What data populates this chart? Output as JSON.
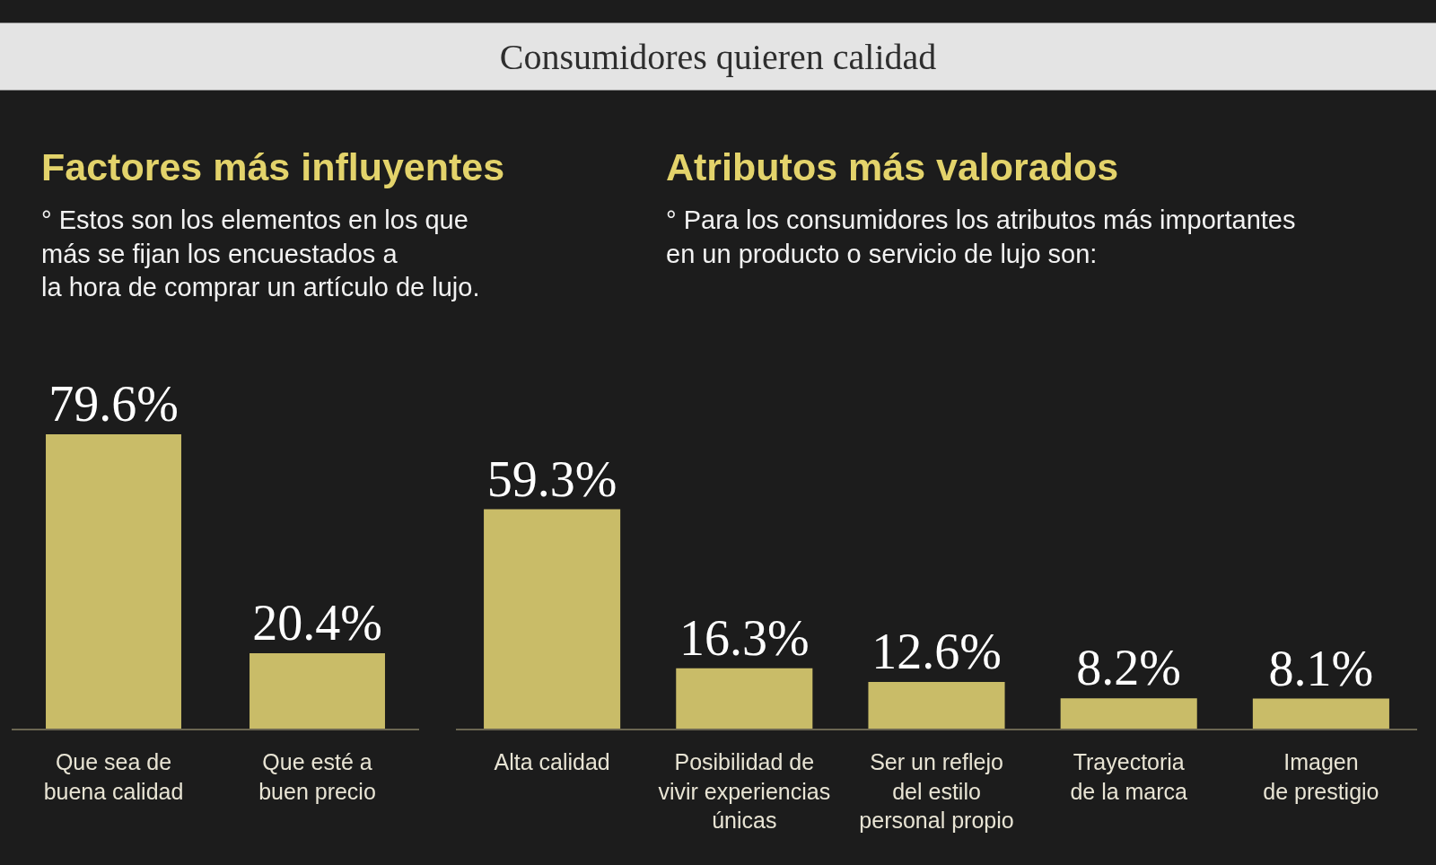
{
  "chart_data": [
    {
      "type": "other",
      "title": "Consumidores quieren calidad"
    },
    {
      "type": "bar",
      "title": "Factores más influyentes",
      "subtitle": "° Estos son los elementos en los que\nmás se fijan los encuestados a\nla hora de comprar un artículo de lujo.",
      "categories": [
        "Que sea de\nbuena calidad",
        "Que esté a\nbuen precio"
      ],
      "values": [
        79.6,
        20.4
      ],
      "value_labels": [
        "79.6%",
        "20.4%"
      ],
      "color": "#c9bc68"
    },
    {
      "type": "bar",
      "title": "Atributos más valorados",
      "subtitle": "° Para los consumidores los atributos más importantes\nen un producto o servicio de lujo son:",
      "categories": [
        "Alta calidad",
        "Posibilidad de\nvivir experiencias\núnicas",
        "Ser un reflejo\ndel estilo\npersonal propio",
        "Trayectoria\nde la marca",
        "Imagen\nde prestigio"
      ],
      "values": [
        59.3,
        16.3,
        12.6,
        8.2,
        8.1
      ],
      "value_labels": [
        "59.3%",
        "16.3%",
        "12.6%",
        "8.2%",
        "8.1%"
      ],
      "color": "#c9bc68"
    }
  ]
}
